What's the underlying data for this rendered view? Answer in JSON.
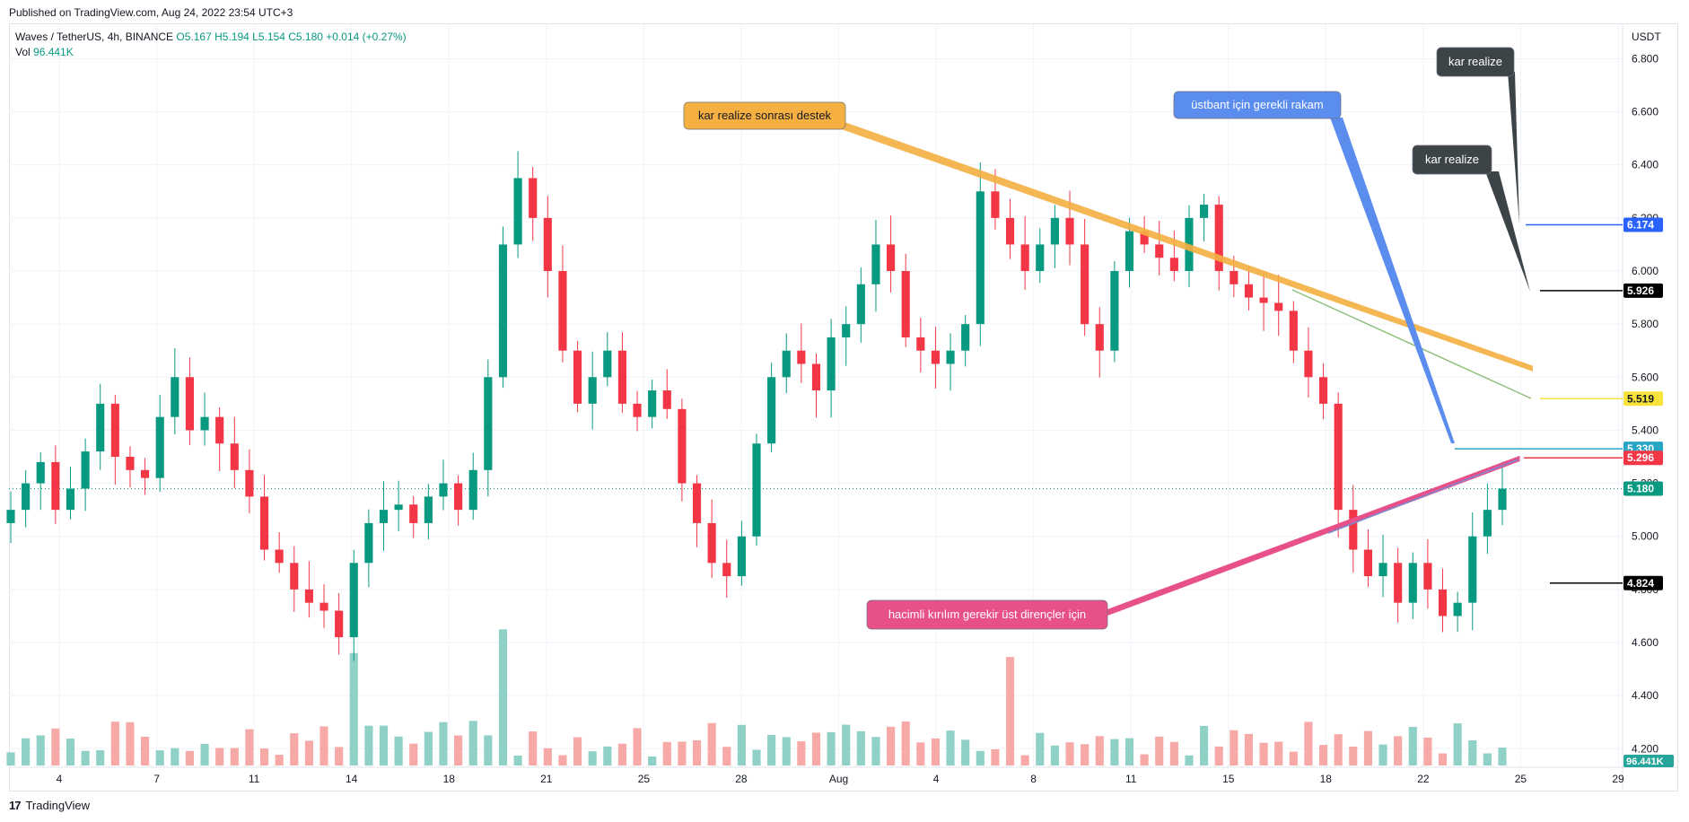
{
  "header": {
    "published": "Published on TradingView.com, Aug 24, 2022 23:54 UTC+3"
  },
  "legend": {
    "symbol": "Waves / TetherUS, 4h, BINANCE",
    "open": "O5.167",
    "high": "H5.194",
    "low": "L5.154",
    "close": "C5.180",
    "change": "+0.014 (+0.27%)",
    "vol_label": "Vol",
    "vol_value": "96.441K"
  },
  "footer": {
    "brand": "TradingView",
    "logo_glyph": "17"
  },
  "chart_data": {
    "type": "candlestick",
    "currency_label": "USDT",
    "ylim": [
      4.13,
      6.93
    ],
    "y_ticks": [
      "6.800",
      "6.600",
      "6.400",
      "6.200",
      "6.000",
      "5.800",
      "5.600",
      "5.400",
      "5.200",
      "5.000",
      "4.800",
      "4.600",
      "4.400",
      "4.200"
    ],
    "x_ticks": [
      "4",
      "7",
      "11",
      "14",
      "18",
      "21",
      "25",
      "28",
      "Aug",
      "4",
      "8",
      "11",
      "15",
      "18",
      "22",
      "25",
      "29"
    ],
    "last_close": 5.18,
    "last_volume": "96.441K",
    "price_markers": [
      {
        "label": "6.174",
        "value": 6.174,
        "color": "#2962ff"
      },
      {
        "label": "5.926",
        "value": 5.926,
        "color": "#000000"
      },
      {
        "label": "5.519",
        "value": 5.519,
        "color": "#f7e33a"
      },
      {
        "label": "5.330",
        "value": 5.33,
        "color": "#26a6c4"
      },
      {
        "label": "5.296",
        "value": 5.296,
        "color": "#f23645"
      },
      {
        "label": "5.180",
        "value": 5.18,
        "color": "#089981"
      },
      {
        "label": "4.824",
        "value": 4.824,
        "color": "#000000"
      }
    ],
    "callouts": [
      {
        "text": "kar realize sonrası destek",
        "color": "#f5b041"
      },
      {
        "text": "üstbant için gerekli rakam",
        "color": "#5b8def"
      },
      {
        "text": "kar realize",
        "color": "#3d4447"
      },
      {
        "text": "kar realize",
        "color": "#3d4447"
      },
      {
        "text": "hacimli kırılım gerekir üst dirençler için",
        "color": "#e8508a"
      }
    ],
    "up_color": "#089981",
    "down_color": "#f23645",
    "series": [
      {
        "name": "close (approx)",
        "values": [
          5.1,
          5.2,
          5.28,
          5.1,
          5.18,
          5.32,
          5.5,
          5.3,
          5.25,
          5.22,
          5.45,
          5.6,
          5.4,
          5.45,
          5.35,
          5.25,
          5.15,
          4.95,
          4.9,
          4.8,
          4.75,
          4.72,
          4.62,
          4.9,
          5.05,
          5.1,
          5.12,
          5.05,
          5.15,
          5.2,
          5.1,
          5.25,
          5.6,
          6.1,
          6.35,
          6.2,
          6.0,
          5.7,
          5.5,
          5.6,
          5.7,
          5.5,
          5.45,
          5.55,
          5.48,
          5.2,
          5.05,
          4.9,
          4.85,
          5.0,
          5.35,
          5.6,
          5.7,
          5.65,
          5.55,
          5.75,
          5.8,
          5.95,
          6.1,
          6.0,
          5.75,
          5.7,
          5.65,
          5.7,
          5.8,
          6.3,
          6.2,
          6.1,
          6.0,
          6.1,
          6.2,
          6.1,
          5.8,
          5.7,
          6.0,
          6.15,
          6.1,
          6.05,
          6.0,
          6.2,
          6.25,
          6.0,
          5.95,
          5.9,
          5.88,
          5.85,
          5.7,
          5.6,
          5.5,
          5.1,
          4.95,
          4.85,
          4.9,
          4.75,
          4.9,
          4.8,
          4.7,
          4.75,
          5.0,
          5.1,
          5.18
        ]
      }
    ]
  }
}
